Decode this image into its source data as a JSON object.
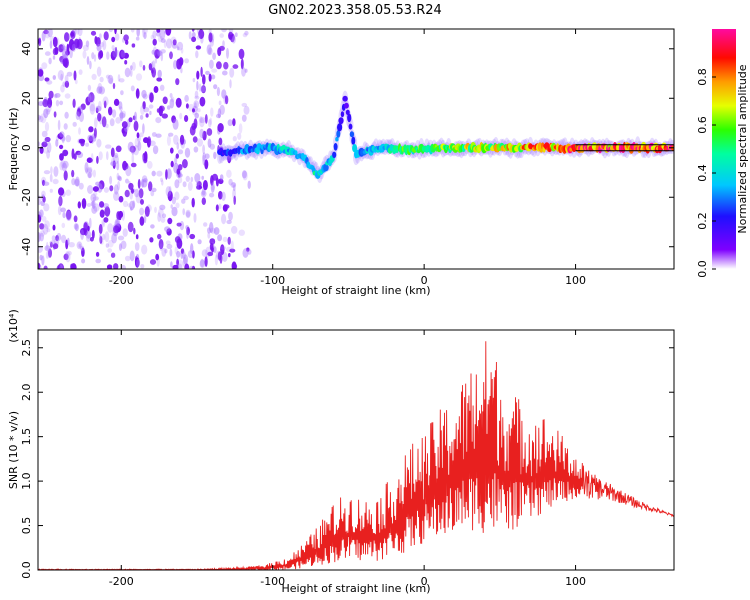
{
  "title": "GN02.2023.358.05.53.R24",
  "chart_data": [
    {
      "type": "heatmap",
      "description_of_encoding": "",
      "xlabel": "Height of straight line (km)",
      "ylabel": "Frequency (Hz)",
      "xlim": [
        -255,
        165
      ],
      "ylim": [
        -49,
        48
      ],
      "xticks": [
        -200,
        -100,
        0,
        100
      ],
      "yticks": [
        -40,
        -20,
        0,
        20,
        40
      ],
      "colorbar": {
        "label": "Normalized spectral amplitude",
        "range": [
          0.0,
          1.0
        ],
        "ticks": [
          0.0,
          0.2,
          0.4,
          0.6,
          0.8
        ],
        "tick_labels": [
          "0.0",
          "0.2",
          "0.4",
          "0.6",
          "0.8"
        ]
      },
      "noise_region": {
        "x_range": [
          -255,
          -125
        ],
        "freq_range": [
          -49,
          48
        ],
        "amplitude": [
          0.05,
          0.2
        ]
      },
      "signal_band": [
        {
          "x": -135,
          "freq": -2,
          "amp": 0.2
        },
        {
          "x": -120,
          "freq": -1,
          "amp": 0.3
        },
        {
          "x": -105,
          "freq": 0,
          "amp": 0.35
        },
        {
          "x": -90,
          "freq": -1,
          "amp": 0.4
        },
        {
          "x": -80,
          "freq": -4,
          "amp": 0.35
        },
        {
          "x": -70,
          "freq": -11,
          "amp": 0.45
        },
        {
          "x": -60,
          "freq": -4,
          "amp": 0.35
        },
        {
          "x": -52,
          "freq": 20,
          "amp": 0.15
        },
        {
          "x": -45,
          "freq": -3,
          "amp": 0.35
        },
        {
          "x": -30,
          "freq": 0,
          "amp": 0.4
        },
        {
          "x": -10,
          "freq": -1,
          "amp": 0.55
        },
        {
          "x": 10,
          "freq": 0,
          "amp": 0.6
        },
        {
          "x": 30,
          "freq": 0,
          "amp": 0.65
        },
        {
          "x": 50,
          "freq": 0,
          "amp": 0.7
        },
        {
          "x": 70,
          "freq": 0,
          "amp": 0.75
        },
        {
          "x": 90,
          "freq": 0,
          "amp": 0.8
        },
        {
          "x": 110,
          "freq": 0,
          "amp": 0.85
        },
        {
          "x": 130,
          "freq": 0,
          "amp": 0.9
        },
        {
          "x": 150,
          "freq": 0,
          "amp": 0.95
        },
        {
          "x": 165,
          "freq": 0,
          "amp": 1.0
        }
      ]
    },
    {
      "type": "line",
      "xlabel": "Height of straight line (km)",
      "ylabel": "SNR (10 * v/v)",
      "y_multiplier": "(x10⁴)",
      "xlim": [
        -255,
        165
      ],
      "ylim": [
        0,
        2.7
      ],
      "xticks": [
        -200,
        -100,
        0,
        100
      ],
      "yticks": [
        0.0,
        0.5,
        1.0,
        1.5,
        2.0,
        2.5
      ],
      "ytick_labels": [
        "0.0",
        "0.5",
        "1.0",
        "1.5",
        "2.0",
        "2.5"
      ],
      "color": "#e8201f",
      "envelope": {
        "x": [
          -255,
          -150,
          -120,
          -105,
          -90,
          -80,
          -70,
          -60,
          -50,
          -40,
          -30,
          -20,
          -10,
          0,
          10,
          20,
          30,
          40,
          45,
          50,
          60,
          70,
          80,
          90,
          100,
          110,
          120,
          130,
          140,
          150,
          165
        ],
        "upper": [
          0.01,
          0.01,
          0.03,
          0.06,
          0.15,
          0.3,
          0.5,
          0.75,
          0.9,
          0.8,
          0.85,
          1.1,
          1.4,
          1.55,
          1.8,
          2.0,
          2.3,
          2.6,
          2.7,
          2.2,
          2.0,
          1.8,
          1.75,
          1.55,
          1.3,
          1.1,
          1.0,
          0.9,
          0.8,
          0.72,
          0.62
        ],
        "lower": [
          0.0,
          0.0,
          0.0,
          0.0,
          0.0,
          0.02,
          0.05,
          0.08,
          0.1,
          0.1,
          0.1,
          0.15,
          0.2,
          0.3,
          0.35,
          0.4,
          0.45,
          0.4,
          0.4,
          0.4,
          0.45,
          0.55,
          0.65,
          0.75,
          0.8,
          0.8,
          0.78,
          0.75,
          0.7,
          0.66,
          0.6
        ]
      }
    }
  ],
  "colors": {
    "axis": "#000000",
    "line": "#e8201f",
    "band_line": "#000000"
  }
}
